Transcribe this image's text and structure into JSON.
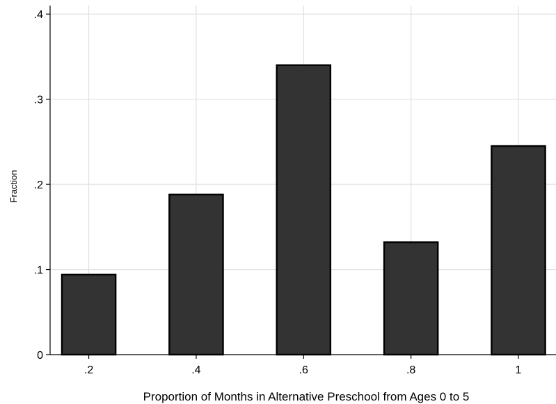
{
  "chart_data": {
    "type": "bar",
    "title": "",
    "xlabel": "Proportion of Months in Alternative Preschool from Ages 0 to 5",
    "ylabel": "Fraction",
    "x": [
      0.2,
      0.4,
      0.6,
      0.8,
      1.0
    ],
    "values": [
      0.094,
      0.188,
      0.34,
      0.132,
      0.245
    ],
    "xticks": [
      {
        "value": 0.2,
        "label": ".2"
      },
      {
        "value": 0.4,
        "label": ".4"
      },
      {
        "value": 0.6,
        "label": ".6"
      },
      {
        "value": 0.8,
        "label": ".8"
      },
      {
        "value": 1.0,
        "label": "1"
      }
    ],
    "yticks": [
      {
        "value": 0,
        "label": "0"
      },
      {
        "value": 0.1,
        "label": ".1"
      },
      {
        "value": 0.2,
        "label": ".2"
      },
      {
        "value": 0.3,
        "label": ".3"
      },
      {
        "value": 0.4,
        "label": ".4"
      }
    ],
    "xlim": [
      0.128,
      1.07
    ],
    "ylim": [
      0,
      0.41
    ],
    "bar_width": 0.1,
    "grid": "vertical-and-horizontal",
    "colors": {
      "bar_fill": "#333333",
      "bar_edge": "#000000",
      "grid": "#e0e0e0",
      "axis": "#000000"
    }
  }
}
